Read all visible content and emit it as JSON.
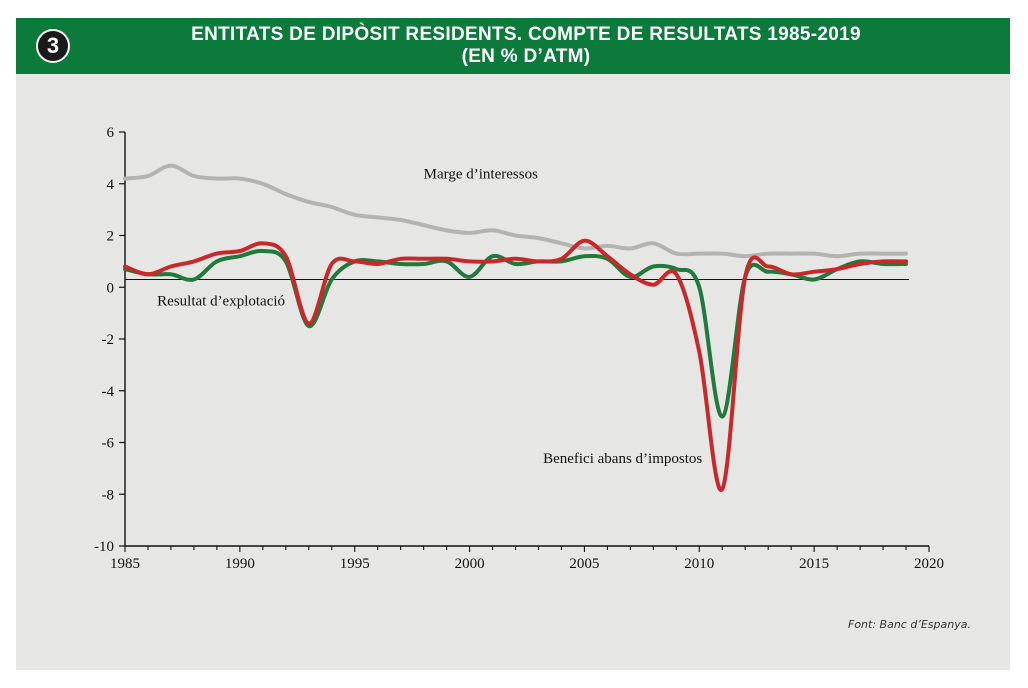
{
  "header": {
    "badge": "3",
    "title_line1": "ENTITATS DE DIPÒSIT RESIDENTS. COMPTE DE RESULTATS 1985-2019",
    "title_line2": "(EN % D’ATM)"
  },
  "source": "Font: Banc d’Espanya.",
  "colors": {
    "header_bg": "#0b7a3b",
    "marge": "#b3b3b3",
    "resultat": "#1f7a3c",
    "benefici": "#c8282a"
  },
  "chart_data": {
    "type": "line",
    "xlim": [
      1985,
      2020
    ],
    "ylim": [
      -10,
      6
    ],
    "x_ticks": [
      1985,
      1990,
      1995,
      2000,
      2005,
      2010,
      2015,
      2020
    ],
    "y_ticks": [
      6,
      4,
      2,
      0,
      -2,
      -4,
      -6,
      -8,
      -10
    ],
    "grid": false,
    "legend": "none",
    "annotations": [
      "Marge d’interessos",
      "Resultat d’explotació",
      "Benefici abans d’impostos"
    ],
    "series": [
      {
        "name": "Marge d’interessos",
        "color": "#b3b3b3",
        "x": [
          1985,
          1986,
          1987,
          1988,
          1989,
          1990,
          1991,
          1992,
          1993,
          1994,
          1995,
          1996,
          1997,
          1998,
          1999,
          2000,
          2001,
          2002,
          2003,
          2004,
          2005,
          2006,
          2007,
          2008,
          2009,
          2010,
          2011,
          2012,
          2013,
          2014,
          2015,
          2016,
          2017,
          2018,
          2019
        ],
        "values": [
          4.2,
          4.3,
          4.7,
          4.3,
          4.2,
          4.2,
          4.0,
          3.6,
          3.3,
          3.1,
          2.8,
          2.7,
          2.6,
          2.4,
          2.2,
          2.1,
          2.2,
          2.0,
          1.9,
          1.7,
          1.5,
          1.6,
          1.5,
          1.7,
          1.3,
          1.3,
          1.3,
          1.2,
          1.3,
          1.3,
          1.3,
          1.2,
          1.3,
          1.3,
          1.3
        ]
      },
      {
        "name": "Resultat d’explotació",
        "color": "#1f7a3c",
        "x": [
          1985,
          1986,
          1987,
          1988,
          1989,
          1990,
          1991,
          1992,
          1993,
          1994,
          1995,
          1996,
          1997,
          1998,
          1999,
          2000,
          2001,
          2002,
          2003,
          2004,
          2005,
          2006,
          2007,
          2008,
          2009,
          2010,
          2011,
          2012,
          2013,
          2014,
          2015,
          2016,
          2017,
          2018,
          2019
        ],
        "values": [
          0.7,
          0.5,
          0.5,
          0.3,
          1.0,
          1.2,
          1.4,
          1.0,
          -1.5,
          0.3,
          1.0,
          1.0,
          0.9,
          0.9,
          1.0,
          0.4,
          1.2,
          0.9,
          1.0,
          1.0,
          1.2,
          1.1,
          0.4,
          0.8,
          0.7,
          0.0,
          -5.0,
          0.4,
          0.6,
          0.5,
          0.3,
          0.7,
          1.0,
          0.9,
          0.9
        ]
      },
      {
        "name": "Benefici abans d’impostos",
        "color": "#c8282a",
        "x": [
          1985,
          1986,
          1987,
          1988,
          1989,
          1990,
          1991,
          1992,
          1993,
          1994,
          1995,
          1996,
          1997,
          1998,
          1999,
          2000,
          2001,
          2002,
          2003,
          2004,
          2005,
          2006,
          2007,
          2008,
          2009,
          2010,
          2011,
          2012,
          2013,
          2014,
          2015,
          2016,
          2017,
          2018,
          2019
        ],
        "values": [
          0.8,
          0.5,
          0.8,
          1.0,
          1.3,
          1.4,
          1.7,
          1.2,
          -1.4,
          0.9,
          1.0,
          0.9,
          1.1,
          1.1,
          1.1,
          1.0,
          1.0,
          1.1,
          1.0,
          1.1,
          1.8,
          1.2,
          0.5,
          0.1,
          0.5,
          -2.5,
          -7.8,
          0.4,
          0.8,
          0.5,
          0.6,
          0.7,
          0.9,
          1.0,
          1.0
        ]
      }
    ],
    "reference_line": 0.3
  }
}
